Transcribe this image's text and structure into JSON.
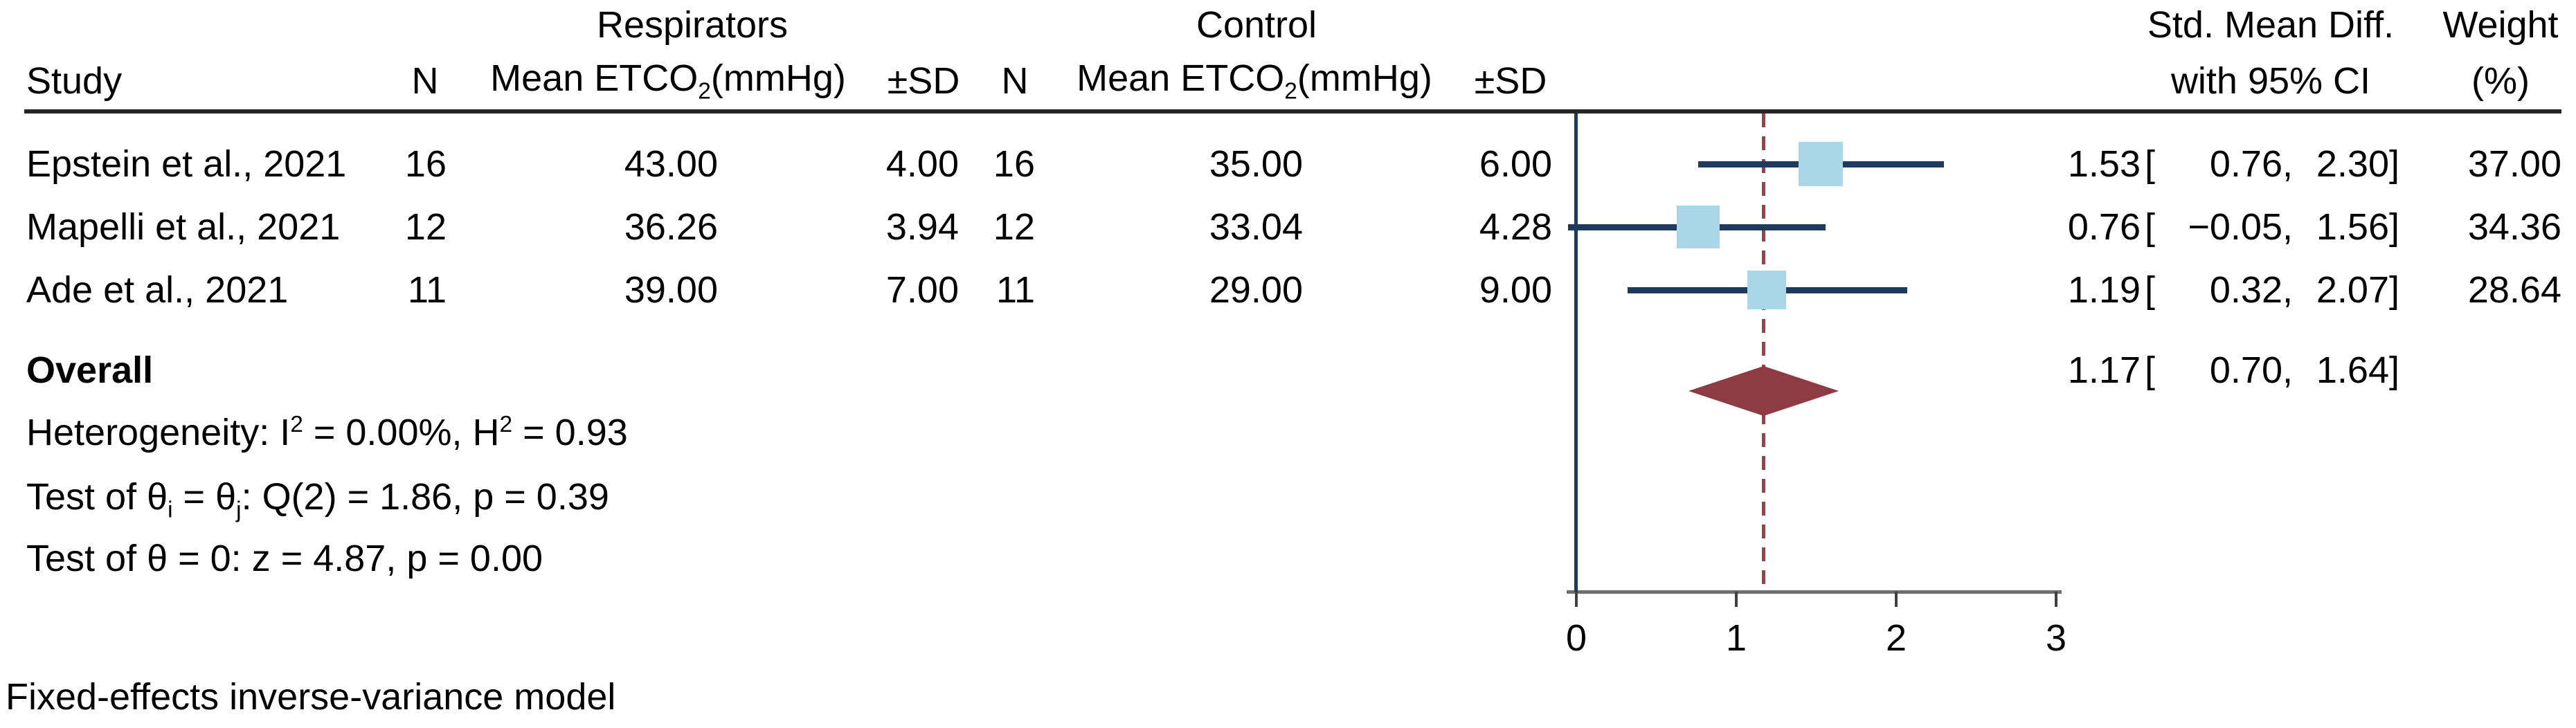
{
  "header": {
    "group_respirators": "Respirators",
    "group_control": "Control",
    "col_study": "Study",
    "col_n": "N",
    "col_mean": {
      "pre": "Mean ETCO",
      "sub": "2",
      "post": "(mmHg)"
    },
    "col_sd": "±SD",
    "col_effect_line1": "Std. Mean Diff.",
    "col_effect_line2": "with 95% CI",
    "col_weight_line1": "Weight",
    "col_weight_line2": "(%)"
  },
  "overall_label": "Overall",
  "stats": {
    "heterogeneity": {
      "pre": "Heterogeneity: I",
      "sup1": "2",
      "mid": " = 0.00%, H",
      "sup2": "2",
      "post": " = 0.93"
    },
    "test_pairwise": {
      "pre": "Test of θ",
      "sub1": "i",
      "mid": " = θ",
      "sub2": "j",
      "post": ": Q(2) = 1.86, p = 0.39"
    },
    "test_zero": "Test of θ = 0: z = 4.87, p = 0.00"
  },
  "footnote": "Fixed-effects inverse-variance model",
  "chart_data": {
    "type": "forest",
    "effect_measure": "Std. Mean Diff.",
    "xlim": [
      0,
      3
    ],
    "x_ticks": [
      0,
      1,
      2,
      3
    ],
    "null_line_x": 0,
    "overall_line_x": 1.17,
    "studies": [
      {
        "label": "Epstein et al., 2021",
        "respirators": {
          "n": 16,
          "mean": 43.0,
          "sd": 4.0
        },
        "control": {
          "n": 16,
          "mean": 35.0,
          "sd": 6.0
        },
        "smd": 1.53,
        "ci": [
          0.76,
          2.3
        ],
        "weight_pct": 37.0
      },
      {
        "label": "Mapelli et al., 2021",
        "respirators": {
          "n": 12,
          "mean": 36.26,
          "sd": 3.94
        },
        "control": {
          "n": 12,
          "mean": 33.04,
          "sd": 4.28
        },
        "smd": 0.76,
        "ci": [
          -0.05,
          1.56
        ],
        "weight_pct": 34.36
      },
      {
        "label": "Ade et al., 2021",
        "respirators": {
          "n": 11,
          "mean": 39.0,
          "sd": 7.0
        },
        "control": {
          "n": 11,
          "mean": 29.0,
          "sd": 9.0
        },
        "smd": 1.19,
        "ci": [
          0.32,
          2.07
        ],
        "weight_pct": 28.64
      }
    ],
    "overall": {
      "smd": 1.17,
      "ci": [
        0.7,
        1.64
      ]
    },
    "model_note": "Fixed-effects inverse-variance model",
    "colors": {
      "marker": "#a9d7e8",
      "ci_line": "#1e3a5c",
      "diamond": "#8e3b43",
      "overall_dashed_line": "#9e4048",
      "axis_line": "#6e6e6e",
      "header_rule": "#262626"
    }
  }
}
